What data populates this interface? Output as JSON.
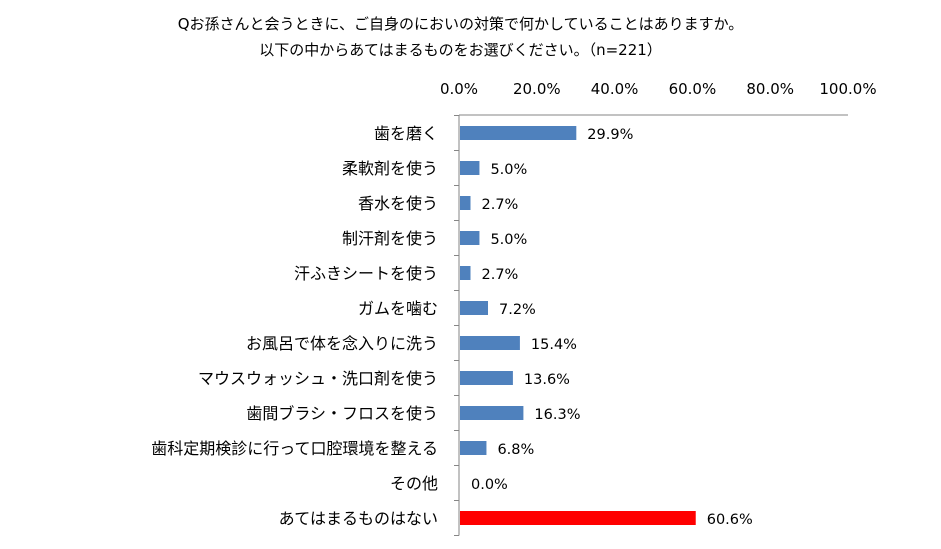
{
  "title_line1": "Qお孫さんと会うときに、ご自身のにおいの対策で何かしていることはありますか。",
  "title_line2": "以下の中からあてはまるものをお選びください。（n=221）",
  "chart_data": {
    "type": "bar",
    "orientation": "horizontal",
    "title": "Qお孫さんと会うときに、ご自身のにおいの対策で何かしていることはありますか。以下の中からあてはまるものをお選びください。（n=221）",
    "xlabel": "",
    "ylabel": "",
    "xlim": [
      0,
      100
    ],
    "x_ticks": [
      "0.0%",
      "20.0%",
      "40.0%",
      "60.0%",
      "80.0%",
      "100.0%"
    ],
    "x_tick_values": [
      0,
      20,
      40,
      60,
      80,
      100
    ],
    "axis_position": "top",
    "grid": false,
    "legend": false,
    "categories": [
      "歯を磨く",
      "柔軟剤を使う",
      "香水を使う",
      "制汗剤を使う",
      "汗ふきシートを使う",
      "ガムを噛む",
      "お風呂で体を念入りに洗う",
      "マウスウォッシュ・洗口剤を使う",
      "歯間ブラシ・フロスを使う",
      "歯科定期検診に行って口腔環境を整える",
      "その他",
      "あてはまるものはない"
    ],
    "values": [
      29.9,
      5.0,
      2.7,
      5.0,
      2.7,
      7.2,
      15.4,
      13.6,
      16.3,
      6.8,
      0.0,
      60.6
    ],
    "value_labels": [
      "29.9%",
      "5.0%",
      "2.7%",
      "5.0%",
      "2.7%",
      "7.2%",
      "15.4%",
      "13.6%",
      "16.3%",
      "6.8%",
      "0.0%",
      "60.6%"
    ],
    "colors": {
      "default": "#4F81BD",
      "highlight": "#FF0000",
      "highlight_index": 11
    }
  }
}
